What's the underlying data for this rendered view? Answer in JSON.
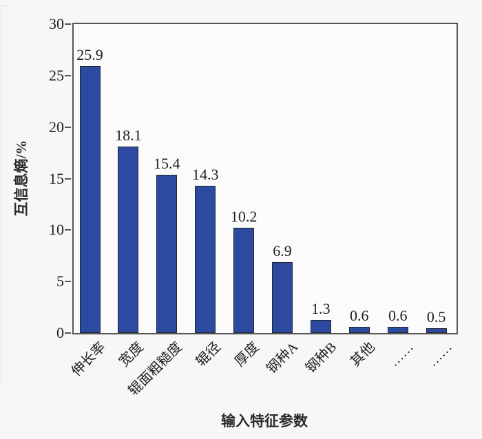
{
  "figure": {
    "background": "#f7f7f7",
    "plot_background": "#fbfbfb",
    "axis_color": "#565656",
    "text_color": "#212121"
  },
  "chart_data": {
    "type": "bar",
    "title": "",
    "categories": [
      "伸长率",
      "宽度",
      "辊面粗糙度",
      "辊径",
      "厚度",
      "钢种A",
      "钢种B",
      "其他",
      "……",
      "……"
    ],
    "values": [
      25.9,
      18.1,
      15.4,
      14.3,
      10.2,
      6.9,
      1.3,
      0.6,
      0.6,
      0.5
    ],
    "data_labels": [
      "25.9",
      "18.1",
      "15.4",
      "14.3",
      "10.2",
      "6.9",
      "1.3",
      "0.6",
      "0.6",
      "0.5"
    ],
    "xlabel": "输入特征参数",
    "ylabel": "互信息熵/%",
    "ylim": [
      0,
      30
    ],
    "yticks": [
      0,
      5,
      10,
      15,
      20,
      25,
      30
    ],
    "xtick_label_rotation_deg": 45,
    "grid": "off",
    "legend": "none",
    "bar_color": "#2c4a9f",
    "bar_border_color": "#20242e"
  }
}
